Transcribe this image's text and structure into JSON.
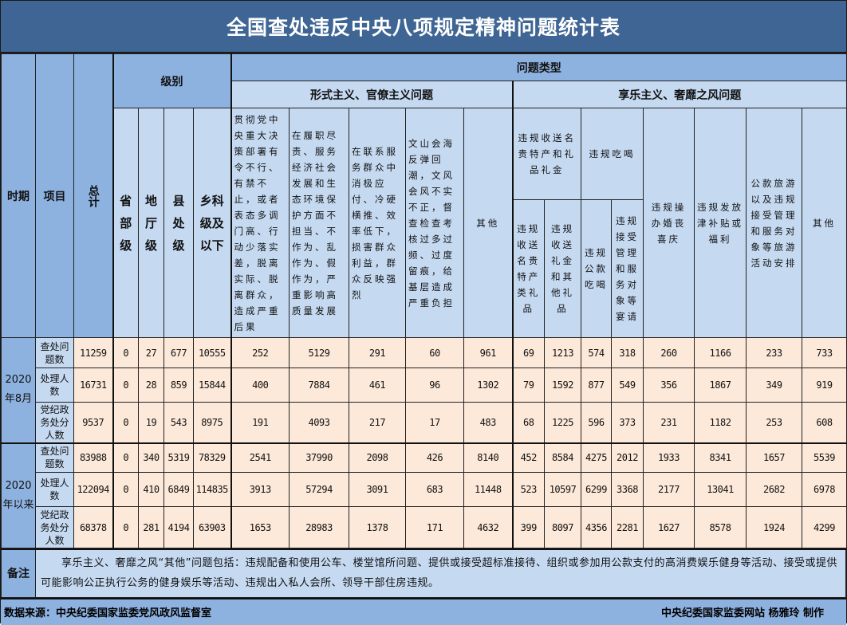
{
  "title": "全国查处违反中央八项规定精神问题统计表",
  "header": {
    "period": "时期",
    "item": "项目",
    "total": "总计",
    "level": "级别",
    "problem_type": "问题类型",
    "levels": [
      "省部级",
      "地厅级",
      "县处级",
      "乡科级及以下"
    ],
    "formalism": {
      "label": "形式主义、官僚主义问题",
      "columns": [
        "贯彻党中央重大决策部署有令不行、有禁不止，或者表态多调门高、行动少落实差，脱离实际、脱离群众，造成严重后果",
        "在履职尽责、服务经济社会发展和生态环境保护方面不担当、不作为、乱作为、假作为，严重影响高质量发展",
        "在联系服务群众中消极应付、冷硬横推、效率低下，损害群众利益，群众反映强烈",
        "文山会海反弹回潮，文风会风不实不正，督查检查考核过多过频、过度留痕，给基层造成严重负担",
        "其他"
      ]
    },
    "hedonism": {
      "label": "享乐主义、奢靡之风问题",
      "gifts_group": "违规收送名贵特产和礼品礼金",
      "gifts_columns": [
        "违规收送名贵特产类礼品",
        "违规收送礼金和其他礼品"
      ],
      "dining_group": "违规吃喝",
      "dining_columns": [
        "违规公款吃喝",
        "违规接受管理和服务对象等宴请"
      ],
      "columns": [
        "违规操办婚丧喜庆",
        "违规发放津补贴或福利",
        "公款旅游以及违规接受管理和服务对象等旅游活动安排",
        "其他"
      ]
    }
  },
  "periods": [
    {
      "label": "2020年8月",
      "rows": [
        {
          "item": "查处问题数",
          "values": [
            "11259",
            "0",
            "27",
            "677",
            "10555",
            "252",
            "5129",
            "291",
            "60",
            "961",
            "69",
            "1213",
            "574",
            "318",
            "260",
            "1166",
            "233",
            "733"
          ]
        },
        {
          "item": "处理人数",
          "values": [
            "16731",
            "0",
            "28",
            "859",
            "15844",
            "400",
            "7884",
            "461",
            "96",
            "1302",
            "79",
            "1592",
            "877",
            "549",
            "356",
            "1867",
            "349",
            "919"
          ]
        },
        {
          "item": "党纪政务处分人数",
          "values": [
            "9537",
            "0",
            "19",
            "543",
            "8975",
            "191",
            "4093",
            "217",
            "17",
            "483",
            "68",
            "1225",
            "596",
            "373",
            "231",
            "1182",
            "253",
            "608"
          ]
        }
      ]
    },
    {
      "label": "2020年以来",
      "rows": [
        {
          "item": "查处问题数",
          "values": [
            "83988",
            "0",
            "340",
            "5319",
            "78329",
            "2541",
            "37990",
            "2098",
            "426",
            "8140",
            "452",
            "8584",
            "4275",
            "2012",
            "1933",
            "8341",
            "1657",
            "5539"
          ]
        },
        {
          "item": "处理人数",
          "values": [
            "122094",
            "0",
            "410",
            "6849",
            "114835",
            "3913",
            "57294",
            "3091",
            "683",
            "11448",
            "523",
            "10597",
            "6299",
            "3368",
            "2177",
            "13041",
            "2682",
            "6978"
          ]
        },
        {
          "item": "党纪政务处分人数",
          "values": [
            "68378",
            "0",
            "281",
            "4194",
            "63903",
            "1653",
            "28983",
            "1378",
            "171",
            "4632",
            "399",
            "8097",
            "4356",
            "2281",
            "1627",
            "8578",
            "1924",
            "4299"
          ]
        }
      ]
    }
  ],
  "note": {
    "label": "备注",
    "text": "享乐主义、奢靡之风“其他”问题包括：违规配备和使用公车、楼堂馆所问题、提供或接受超标准接待、组织或参加用公款支付的高消费娱乐健身等活动、接受或提供可能影响公正执行公务的健身娱乐等活动、违规出入私人会所、领导干部住房违规。"
  },
  "footer": {
    "source": "数据来源：中央纪委国家监委党风政风监督室",
    "credit": "中央纪委国家监委网站 杨雅玲 制作"
  },
  "colors": {
    "title_bg": "#3e6593",
    "header_dark": "#8eb2e0",
    "header_light": "#c5d9f1",
    "data_bg": "#fde9d9"
  }
}
